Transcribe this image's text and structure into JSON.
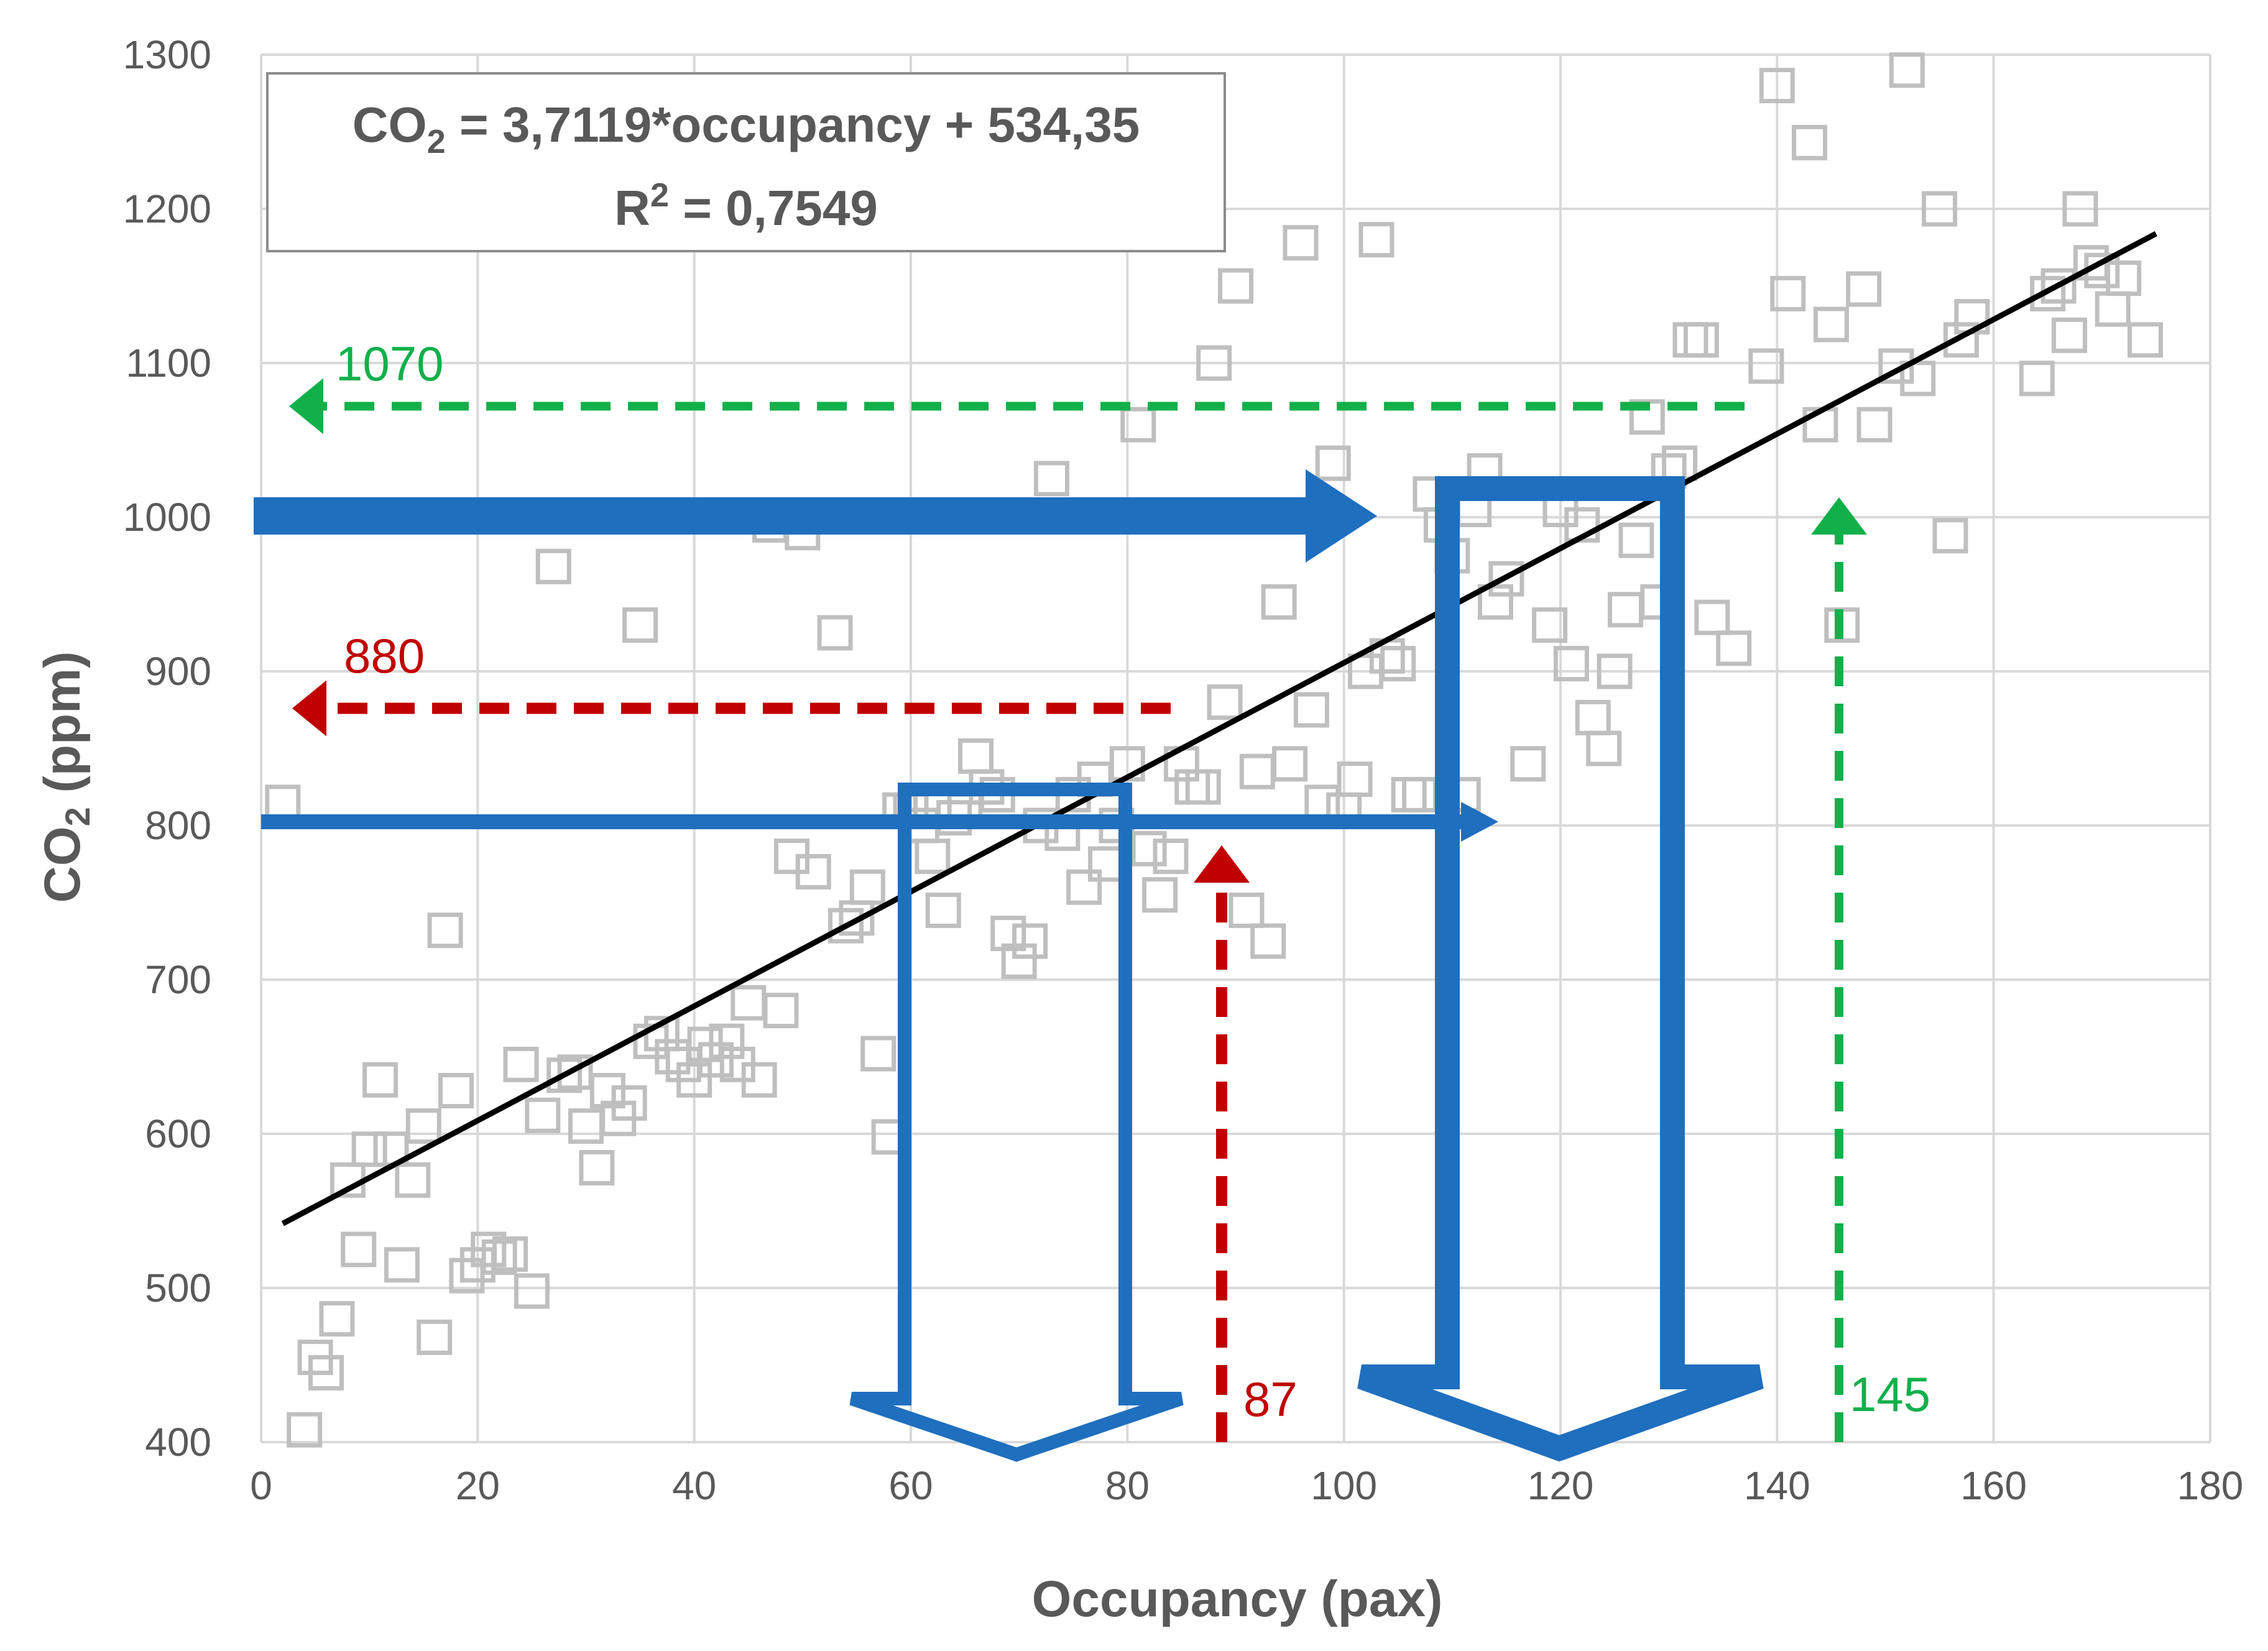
{
  "chart_data": {
    "type": "scatter",
    "title": "",
    "xlabel": "Occupancy (pax)",
    "ylabel_main": "CO",
    "ylabel_sub": "2",
    "ylabel_rest": " (ppm)",
    "xlim": [
      0,
      180
    ],
    "ylim": [
      400,
      1300
    ],
    "xticks": [
      0,
      20,
      40,
      60,
      80,
      100,
      120,
      140,
      160,
      180
    ],
    "yticks": [
      400,
      500,
      600,
      700,
      800,
      900,
      1000,
      1100,
      1200,
      1300
    ],
    "grid": true,
    "marker": "hollow-square",
    "marker_color": "#bfbfbf",
    "gridline_color": "#d9d9d9",
    "trendline": {
      "slope": 3.7119,
      "intercept": 534.35,
      "x_range": [
        2,
        175
      ],
      "color": "#000000",
      "equation_prefix": "CO",
      "equation_sub": "2",
      "equation_rest": " = 3,7119*occupancy + 534,35",
      "r2_prefix": "R",
      "r2_sup": "2",
      "r2_rest": " = 0,7549"
    },
    "points": [
      [
        2,
        815
      ],
      [
        4,
        408
      ],
      [
        5,
        455
      ],
      [
        6,
        445
      ],
      [
        7,
        480
      ],
      [
        8,
        570
      ],
      [
        9,
        525
      ],
      [
        10,
        590
      ],
      [
        11,
        635
      ],
      [
        12,
        590
      ],
      [
        13,
        515
      ],
      [
        14,
        570
      ],
      [
        15,
        605
      ],
      [
        16,
        468
      ],
      [
        17,
        732
      ],
      [
        18,
        628
      ],
      [
        19,
        508
      ],
      [
        20,
        515
      ],
      [
        21,
        525
      ],
      [
        22,
        520
      ],
      [
        23,
        522
      ],
      [
        24,
        645
      ],
      [
        25,
        498
      ],
      [
        26,
        612
      ],
      [
        27,
        968
      ],
      [
        28,
        638
      ],
      [
        29,
        640
      ],
      [
        30,
        605
      ],
      [
        31,
        578
      ],
      [
        32,
        628
      ],
      [
        33,
        610
      ],
      [
        34,
        620
      ],
      [
        35,
        930
      ],
      [
        36,
        660
      ],
      [
        37,
        665
      ],
      [
        38,
        650
      ],
      [
        39,
        645
      ],
      [
        40,
        635
      ],
      [
        41,
        658
      ],
      [
        42,
        648
      ],
      [
        43,
        660
      ],
      [
        44,
        645
      ],
      [
        45,
        685
      ],
      [
        46,
        635
      ],
      [
        47,
        995
      ],
      [
        48,
        680
      ],
      [
        49,
        780
      ],
      [
        50,
        990
      ],
      [
        51,
        770
      ],
      [
        53,
        925
      ],
      [
        54,
        735
      ],
      [
        55,
        740
      ],
      [
        56,
        760
      ],
      [
        57,
        652
      ],
      [
        58,
        598
      ],
      [
        59,
        810
      ],
      [
        60,
        810
      ],
      [
        61,
        800
      ],
      [
        62,
        780
      ],
      [
        63,
        745
      ],
      [
        64,
        805
      ],
      [
        65,
        810
      ],
      [
        66,
        845
      ],
      [
        67,
        825
      ],
      [
        68,
        820
      ],
      [
        69,
        730
      ],
      [
        70,
        712
      ],
      [
        71,
        725
      ],
      [
        72,
        800
      ],
      [
        73,
        1025
      ],
      [
        74,
        795
      ],
      [
        75,
        820
      ],
      [
        76,
        760
      ],
      [
        77,
        830
      ],
      [
        78,
        775
      ],
      [
        79,
        800
      ],
      [
        80,
        840
      ],
      [
        81,
        1060
      ],
      [
        82,
        785
      ],
      [
        83,
        755
      ],
      [
        84,
        780
      ],
      [
        85,
        840
      ],
      [
        86,
        825
      ],
      [
        87,
        825
      ],
      [
        88,
        1100
      ],
      [
        89,
        880
      ],
      [
        90,
        1150
      ],
      [
        91,
        745
      ],
      [
        92,
        835
      ],
      [
        93,
        725
      ],
      [
        94,
        945
      ],
      [
        95,
        840
      ],
      [
        96,
        1178
      ],
      [
        97,
        875
      ],
      [
        98,
        815
      ],
      [
        99,
        1035
      ],
      [
        100,
        810
      ],
      [
        101,
        830
      ],
      [
        102,
        900
      ],
      [
        103,
        1180
      ],
      [
        104,
        910
      ],
      [
        105,
        905
      ],
      [
        106,
        820
      ],
      [
        107,
        820
      ],
      [
        108,
        1015
      ],
      [
        109,
        995
      ],
      [
        110,
        975
      ],
      [
        111,
        820
      ],
      [
        112,
        1005
      ],
      [
        113,
        1030
      ],
      [
        114,
        945
      ],
      [
        115,
        960
      ],
      [
        117,
        840
      ],
      [
        119,
        930
      ],
      [
        120,
        1005
      ],
      [
        121,
        905
      ],
      [
        122,
        995
      ],
      [
        123,
        870
      ],
      [
        124,
        850
      ],
      [
        125,
        900
      ],
      [
        126,
        940
      ],
      [
        127,
        985
      ],
      [
        128,
        1065
      ],
      [
        129,
        945
      ],
      [
        130,
        1030
      ],
      [
        131,
        1035
      ],
      [
        132,
        1115
      ],
      [
        133,
        1115
      ],
      [
        134,
        935
      ],
      [
        136,
        915
      ],
      [
        139,
        1098
      ],
      [
        140,
        1280
      ],
      [
        141,
        1145
      ],
      [
        143,
        1243
      ],
      [
        144,
        1060
      ],
      [
        145,
        1125
      ],
      [
        146,
        930
      ],
      [
        148,
        1148
      ],
      [
        149,
        1060
      ],
      [
        151,
        1098
      ],
      [
        152,
        1290
      ],
      [
        153,
        1090
      ],
      [
        155,
        1200
      ],
      [
        156,
        988
      ],
      [
        157,
        1115
      ],
      [
        158,
        1130
      ],
      [
        164,
        1090
      ],
      [
        165,
        1145
      ],
      [
        166,
        1150
      ],
      [
        167,
        1118
      ],
      [
        168,
        1200
      ],
      [
        169,
        1165
      ],
      [
        170,
        1160
      ],
      [
        171,
        1135
      ],
      [
        172,
        1155
      ],
      [
        174,
        1115
      ]
    ],
    "annotations": {
      "green_label_y": "1070",
      "red_label_y": "880",
      "red_label_x": "87",
      "green_label_x": "145",
      "green_color": "#12b04a",
      "red_color": "#c00000",
      "blue_color": "#1f6fbf"
    }
  }
}
